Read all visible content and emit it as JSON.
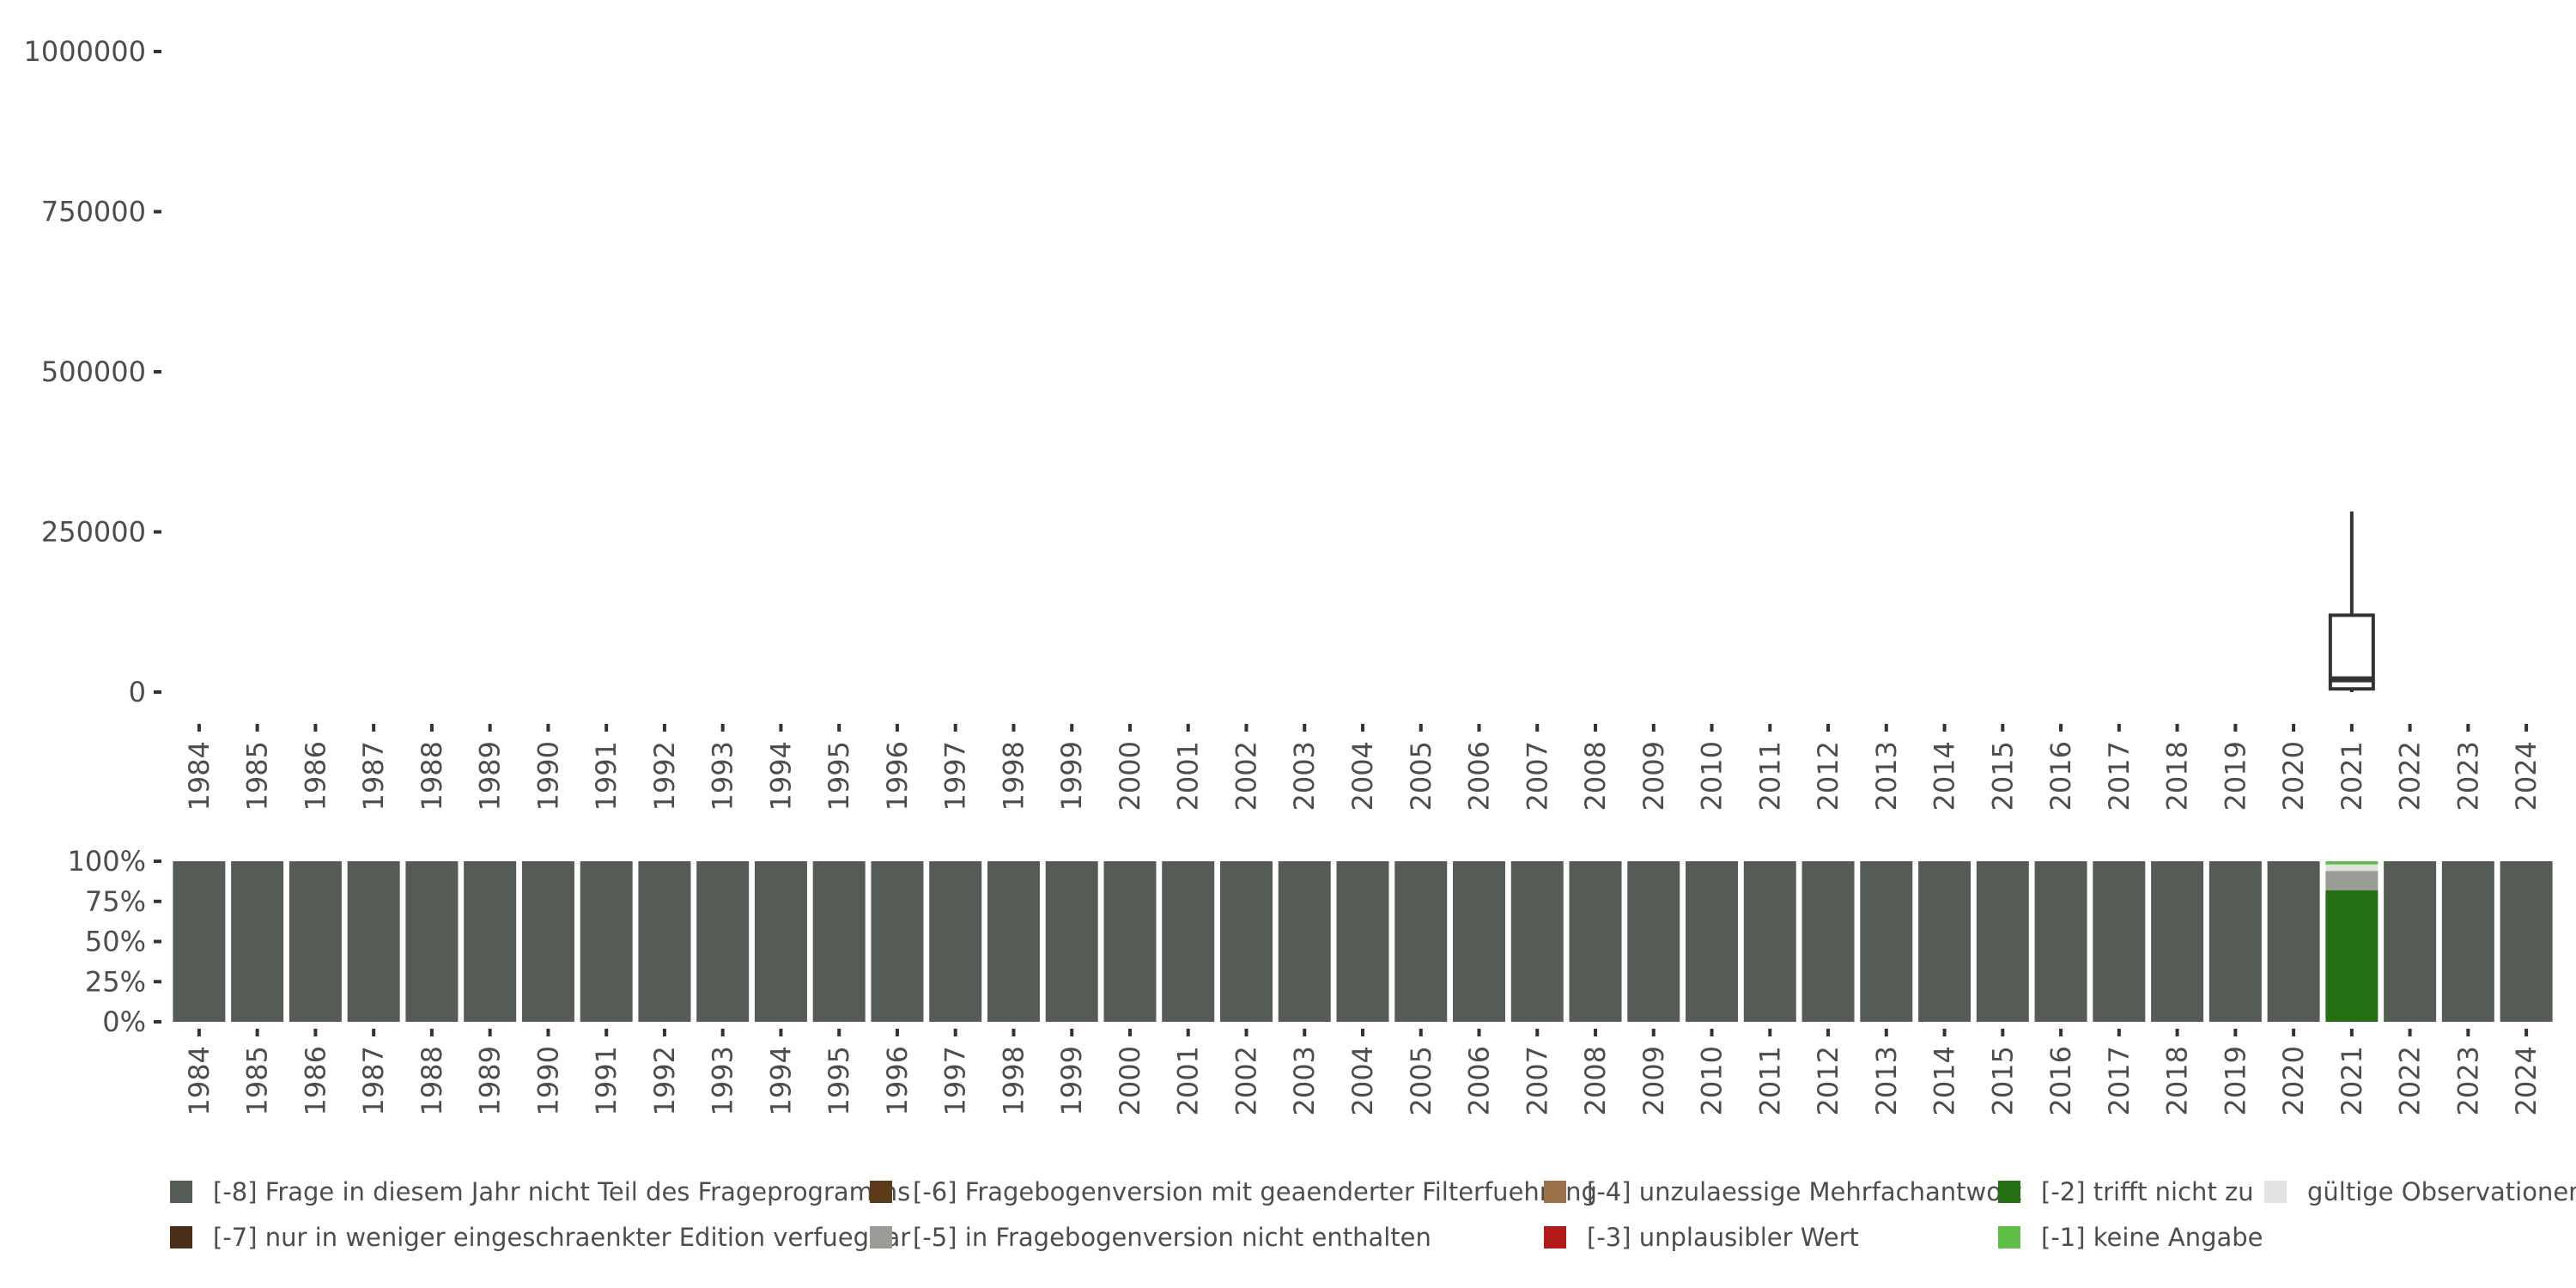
{
  "chart_data": [
    {
      "type": "box",
      "title": "",
      "xlabel": "",
      "ylabel": "",
      "ylim": [
        0,
        1000000
      ],
      "y_ticks": [
        0,
        250000,
        500000,
        750000,
        1000000
      ],
      "y_tick_labels": [
        "0",
        "250000",
        "500000",
        "750000",
        "1000000"
      ],
      "categories": [
        "1984",
        "1985",
        "1986",
        "1987",
        "1988",
        "1989",
        "1990",
        "1991",
        "1992",
        "1993",
        "1994",
        "1995",
        "1996",
        "1997",
        "1998",
        "1999",
        "2000",
        "2001",
        "2002",
        "2003",
        "2004",
        "2005",
        "2006",
        "2007",
        "2008",
        "2009",
        "2010",
        "2011",
        "2012",
        "2013",
        "2014",
        "2015",
        "2016",
        "2017",
        "2018",
        "2019",
        "2020",
        "2021",
        "2022",
        "2023",
        "2024"
      ],
      "boxes": [
        {
          "category": "2021",
          "whisker_low": 0,
          "q1": 5000,
          "median": 20000,
          "q3": 120000,
          "whisker_high": 282000
        }
      ],
      "grid": false
    },
    {
      "type": "stacked_bar",
      "title": "",
      "xlabel": "",
      "ylabel": "",
      "ylim": [
        0,
        1
      ],
      "y_ticks": [
        0,
        0.25,
        0.5,
        0.75,
        1
      ],
      "y_tick_labels": [
        "0%",
        "25%",
        "50%",
        "75%",
        "100%"
      ],
      "categories": [
        "1984",
        "1985",
        "1986",
        "1987",
        "1988",
        "1989",
        "1990",
        "1991",
        "1992",
        "1993",
        "1994",
        "1995",
        "1996",
        "1997",
        "1998",
        "1999",
        "2000",
        "2001",
        "2002",
        "2003",
        "2004",
        "2005",
        "2006",
        "2007",
        "2008",
        "2009",
        "2010",
        "2011",
        "2012",
        "2013",
        "2014",
        "2015",
        "2016",
        "2017",
        "2018",
        "2019",
        "2020",
        "2021",
        "2022",
        "2023",
        "2024"
      ],
      "series": [
        {
          "name": "[-8] Frage in diesem Jahr nicht Teil des Frageprogramms",
          "color": "#555b55",
          "values": [
            1,
            1,
            1,
            1,
            1,
            1,
            1,
            1,
            1,
            1,
            1,
            1,
            1,
            1,
            1,
            1,
            1,
            1,
            1,
            1,
            1,
            1,
            1,
            1,
            1,
            1,
            1,
            1,
            1,
            1,
            1,
            1,
            1,
            1,
            1,
            1,
            1,
            0,
            1,
            1,
            1
          ]
        },
        {
          "name": "[-7] nur in weniger eingeschraenkter Edition verfuegbar",
          "color": "#4a2e17",
          "values": [
            0,
            0,
            0,
            0,
            0,
            0,
            0,
            0,
            0,
            0,
            0,
            0,
            0,
            0,
            0,
            0,
            0,
            0,
            0,
            0,
            0,
            0,
            0,
            0,
            0,
            0,
            0,
            0,
            0,
            0,
            0,
            0,
            0,
            0,
            0,
            0,
            0,
            0,
            0,
            0,
            0
          ]
        },
        {
          "name": "[-6] Fragebogenversion mit geaenderter Filterfuehrung",
          "color": "#5c3a1a",
          "values": [
            0,
            0,
            0,
            0,
            0,
            0,
            0,
            0,
            0,
            0,
            0,
            0,
            0,
            0,
            0,
            0,
            0,
            0,
            0,
            0,
            0,
            0,
            0,
            0,
            0,
            0,
            0,
            0,
            0,
            0,
            0,
            0,
            0,
            0,
            0,
            0,
            0,
            0,
            0,
            0,
            0
          ]
        },
        {
          "name": "[-5] in Fragebogenversion nicht enthalten",
          "color": "#999c97",
          "values": [
            0,
            0,
            0,
            0,
            0,
            0,
            0,
            0,
            0,
            0,
            0,
            0,
            0,
            0,
            0,
            0,
            0,
            0,
            0,
            0,
            0,
            0,
            0,
            0,
            0,
            0,
            0,
            0,
            0,
            0,
            0,
            0,
            0,
            0,
            0,
            0,
            0,
            0.12,
            0,
            0,
            0
          ]
        },
        {
          "name": "[-4] unzulaessige Mehrfachantwort",
          "color": "#9b7249",
          "values": [
            0,
            0,
            0,
            0,
            0,
            0,
            0,
            0,
            0,
            0,
            0,
            0,
            0,
            0,
            0,
            0,
            0,
            0,
            0,
            0,
            0,
            0,
            0,
            0,
            0,
            0,
            0,
            0,
            0,
            0,
            0,
            0,
            0,
            0,
            0,
            0,
            0,
            0,
            0,
            0,
            0
          ]
        },
        {
          "name": "[-3] unplausibler Wert",
          "color": "#b31b1b",
          "values": [
            0,
            0,
            0,
            0,
            0,
            0,
            0,
            0,
            0,
            0,
            0,
            0,
            0,
            0,
            0,
            0,
            0,
            0,
            0,
            0,
            0,
            0,
            0,
            0,
            0,
            0,
            0,
            0,
            0,
            0,
            0,
            0,
            0,
            0,
            0,
            0,
            0,
            0,
            0,
            0,
            0
          ]
        },
        {
          "name": "[-2] trifft nicht zu",
          "color": "#246f12",
          "values": [
            0,
            0,
            0,
            0,
            0,
            0,
            0,
            0,
            0,
            0,
            0,
            0,
            0,
            0,
            0,
            0,
            0,
            0,
            0,
            0,
            0,
            0,
            0,
            0,
            0,
            0,
            0,
            0,
            0,
            0,
            0,
            0,
            0,
            0,
            0,
            0,
            0,
            0.82,
            0,
            0,
            0
          ]
        },
        {
          "name": "[-1] keine Angabe",
          "color": "#5ebe45",
          "values": [
            0,
            0,
            0,
            0,
            0,
            0,
            0,
            0,
            0,
            0,
            0,
            0,
            0,
            0,
            0,
            0,
            0,
            0,
            0,
            0,
            0,
            0,
            0,
            0,
            0,
            0,
            0,
            0,
            0,
            0,
            0,
            0,
            0,
            0,
            0,
            0,
            0,
            0.02,
            0,
            0,
            0
          ]
        },
        {
          "name": "gültige Observationen",
          "color": "#e1e3e0",
          "values": [
            0,
            0,
            0,
            0,
            0,
            0,
            0,
            0,
            0,
            0,
            0,
            0,
            0,
            0,
            0,
            0,
            0,
            0,
            0,
            0,
            0,
            0,
            0,
            0,
            0,
            0,
            0,
            0,
            0,
            0,
            0,
            0,
            0,
            0,
            0,
            0,
            0,
            0.04,
            0,
            0,
            0
          ]
        }
      ],
      "stack_order": [
        6,
        5,
        4,
        3,
        2,
        1,
        0,
        8,
        7
      ],
      "legend": {
        "placement": "bottom",
        "order": [
          0,
          1,
          2,
          3,
          4,
          5,
          6,
          7,
          8
        ]
      },
      "grid": false
    }
  ]
}
